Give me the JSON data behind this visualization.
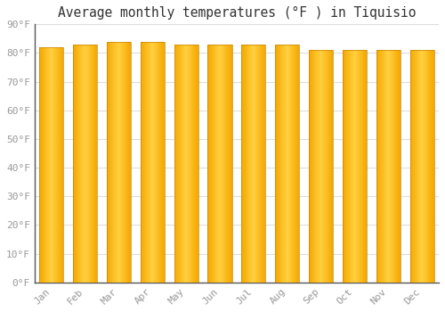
{
  "title": "Average monthly temperatures (°F ) in Tiquisio",
  "months": [
    "Jan",
    "Feb",
    "Mar",
    "Apr",
    "May",
    "Jun",
    "Jul",
    "Aug",
    "Sep",
    "Oct",
    "Nov",
    "Dec"
  ],
  "values": [
    82,
    83,
    84,
    84,
    83,
    83,
    83,
    83,
    81,
    81,
    81,
    81
  ],
  "bar_color_edge": "#F5A800",
  "bar_color_center": "#FFD040",
  "bar_color_bottom": "#F5A800",
  "ylim": [
    0,
    90
  ],
  "yticks": [
    0,
    10,
    20,
    30,
    40,
    50,
    60,
    70,
    80,
    90
  ],
  "ytick_labels": [
    "0°F",
    "10°F",
    "20°F",
    "30°F",
    "40°F",
    "50°F",
    "60°F",
    "70°F",
    "80°F",
    "90°F"
  ],
  "background_color": "#ffffff",
  "plot_bg_color": "#ffffff",
  "grid_color": "#dddddd",
  "title_fontsize": 10.5,
  "tick_fontsize": 8,
  "font_family": "monospace",
  "tick_color": "#999999",
  "spine_color": "#555555"
}
